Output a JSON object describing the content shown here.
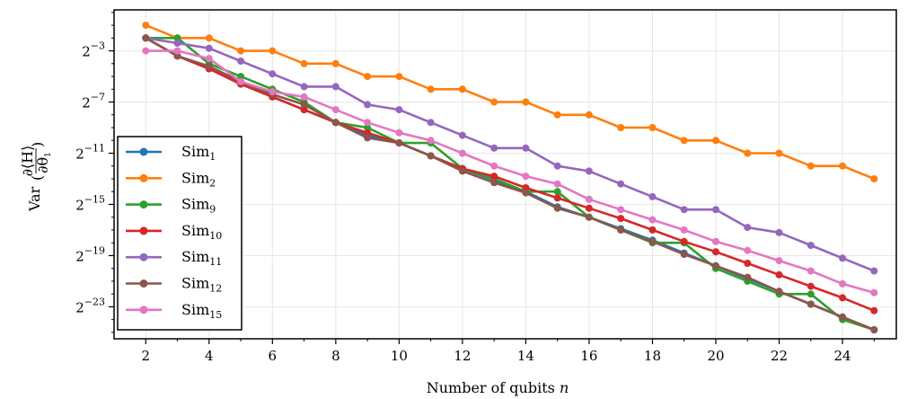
{
  "chart_data": {
    "type": "line",
    "xlabel_main": "Number of qubits ",
    "xlabel_var": "n",
    "ylabel_prefix": "Var",
    "ylabel_num": "∂⟨H⟩",
    "ylabel_den": "∂θ",
    "ylabel_den_sub": "1",
    "x_ticks": [
      2,
      4,
      6,
      8,
      10,
      12,
      14,
      16,
      18,
      20,
      22,
      24
    ],
    "y_ticks": [
      {
        "exp": -3,
        "base": "2",
        "label": "−3"
      },
      {
        "exp": -7,
        "base": "2",
        "label": "−7"
      },
      {
        "exp": -11,
        "base": "2",
        "label": "−11"
      },
      {
        "exp": -15,
        "base": "2",
        "label": "−15"
      },
      {
        "exp": -19,
        "base": "2",
        "label": "−19"
      },
      {
        "exp": -23,
        "base": "2",
        "label": "−23"
      }
    ],
    "xlim": [
      1,
      25.7
    ],
    "ylim_log2": [
      -25.5,
      0.2
    ],
    "grid": true,
    "legend_position": "left",
    "x": [
      2,
      3,
      4,
      5,
      6,
      7,
      8,
      9,
      10,
      11,
      12,
      13,
      14,
      15,
      16,
      17,
      18,
      19,
      20,
      21,
      22,
      23,
      24,
      25
    ],
    "series": [
      {
        "name": "Sim",
        "sub": "1",
        "color": "#1f77b4",
        "values": [
          -2.0,
          -3.4,
          -4.4,
          -5.6,
          -6.6,
          -7.6,
          -8.6,
          -9.6,
          -10.2,
          -11.2,
          -12.2,
          -13.1,
          -14.0,
          -15.2,
          -16.0,
          -16.9,
          -17.8,
          -18.8,
          -19.8,
          -20.8,
          -21.8,
          -22.8,
          -23.8,
          -24.8
        ]
      },
      {
        "name": "Sim",
        "sub": "2",
        "color": "#ff7f0e",
        "values": [
          -1.0,
          -2.0,
          -2.0,
          -3.0,
          -3.0,
          -4.0,
          -4.0,
          -5.0,
          -5.0,
          -6.0,
          -6.0,
          -7.0,
          -7.0,
          -8.0,
          -8.0,
          -9.0,
          -9.0,
          -10.0,
          -10.0,
          -11.0,
          -11.0,
          -12.0,
          -12.0,
          -13.0
        ]
      },
      {
        "name": "Sim",
        "sub": "9",
        "color": "#2ca02c",
        "values": [
          -2.0,
          -2.0,
          -4.0,
          -5.0,
          -6.0,
          -7.0,
          -8.6,
          -9.0,
          -10.2,
          -10.2,
          -12.2,
          -13.0,
          -14.0,
          -14.0,
          -16.0,
          -17.0,
          -18.0,
          -18.0,
          -20.0,
          -21.0,
          -22.0,
          -22.0,
          -24.0,
          -24.8
        ]
      },
      {
        "name": "Sim",
        "sub": "10",
        "color": "#d62728",
        "values": [
          -2.0,
          -3.4,
          -4.4,
          -5.6,
          -6.6,
          -7.6,
          -8.6,
          -9.4,
          -10.2,
          -11.2,
          -12.2,
          -12.8,
          -13.7,
          -14.5,
          -15.3,
          -16.1,
          -17.0,
          -17.9,
          -18.7,
          -19.6,
          -20.5,
          -21.4,
          -22.3,
          -23.3
        ]
      },
      {
        "name": "Sim",
        "sub": "11",
        "color": "#9467bd",
        "values": [
          -2.0,
          -2.4,
          -2.8,
          -3.8,
          -4.8,
          -5.8,
          -5.8,
          -7.2,
          -7.6,
          -8.6,
          -9.6,
          -10.6,
          -10.6,
          -12.0,
          -12.4,
          -13.4,
          -14.4,
          -15.4,
          -15.4,
          -16.8,
          -17.2,
          -18.2,
          -19.2,
          -20.2
        ]
      },
      {
        "name": "Sim",
        "sub": "12",
        "color": "#8c564b",
        "values": [
          -2.0,
          -3.4,
          -4.2,
          -5.4,
          -6.4,
          -7.2,
          -8.6,
          -9.8,
          -10.2,
          -11.2,
          -12.4,
          -13.3,
          -14.1,
          -15.3,
          -16.0,
          -17.0,
          -17.9,
          -18.9,
          -19.8,
          -20.7,
          -21.8,
          -22.8,
          -23.8,
          -24.8
        ]
      },
      {
        "name": "Sim",
        "sub": "15",
        "color": "#e377c2",
        "values": [
          -3.0,
          -3.0,
          -3.6,
          -5.4,
          -6.2,
          -6.6,
          -7.6,
          -8.6,
          -9.4,
          -10.0,
          -11.0,
          -12.0,
          -12.8,
          -13.4,
          -14.6,
          -15.4,
          -16.2,
          -17.0,
          -17.9,
          -18.6,
          -19.4,
          -20.2,
          -21.2,
          -21.9
        ]
      }
    ]
  }
}
